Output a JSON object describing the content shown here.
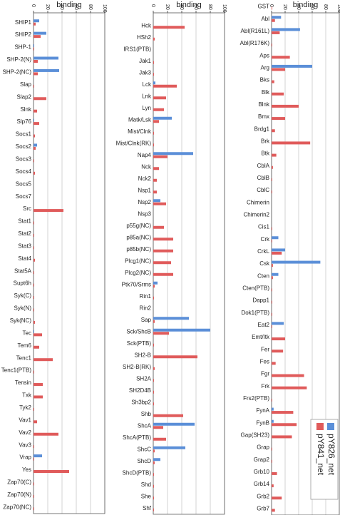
{
  "chart_data": [
    {
      "type": "bar",
      "horizontal": true,
      "title": "binding",
      "xlim": [
        0,
        100
      ],
      "xticks": [
        0,
        20,
        40,
        60,
        80,
        100
      ],
      "grid": true,
      "categories": [
        "SHIP1",
        "SHIP2",
        "SHP-1",
        "SHP-2(N)",
        "SHP-2(NC)",
        "Slap",
        "Slap2",
        "Slnk",
        "Slp76",
        "Socs1",
        "Socs2",
        "Socs3",
        "Socs4",
        "Socs5",
        "Socs7",
        "Src",
        "Stat1",
        "Stat2",
        "Stat3",
        "Stat4",
        "Stat5A",
        "Supt6h",
        "Syk(C)",
        "Syk(N)",
        "Syk(NC)",
        "Tec",
        "Tem6",
        "Tenc1",
        "Tenc1(PTB)",
        "Tensin",
        "Txk",
        "Tyk2",
        "Vav1",
        "Vav2",
        "Vav3",
        "Vrap",
        "Yes",
        "Zap70(C)",
        "Zap70(N)",
        "Zap70(NC)"
      ],
      "series": [
        {
          "name": "pY826_net",
          "color": "#5b8fd8",
          "values": [
            8,
            18,
            1,
            35,
            36,
            0,
            0,
            0,
            1,
            0,
            5,
            0,
            0,
            0,
            0,
            0,
            0,
            0,
            0,
            0,
            0,
            0,
            0,
            0,
            0,
            1,
            0,
            0,
            0,
            0,
            0,
            0,
            0,
            0,
            0,
            12,
            0,
            0,
            0,
            0
          ]
        },
        {
          "name": "pY841_net",
          "color": "#e05b5b",
          "values": [
            3,
            10,
            1,
            6,
            6,
            1,
            18,
            5,
            8,
            2,
            3,
            1,
            2,
            0,
            0,
            42,
            1,
            1,
            1,
            2,
            1,
            1,
            1,
            1,
            2,
            12,
            8,
            27,
            1,
            13,
            13,
            1,
            5,
            35,
            1,
            1,
            50,
            1,
            1,
            1
          ]
        }
      ]
    },
    {
      "type": "bar",
      "horizontal": true,
      "title": "binding",
      "xlim": [
        0,
        100
      ],
      "xticks": [
        0,
        20,
        40,
        60,
        80,
        100
      ],
      "grid": true,
      "categories": [
        "Hck",
        "HSh2",
        "IRS1(PTB)",
        "Jak1",
        "Jak3",
        "Lck",
        "Lnk",
        "Lyn",
        "Matk/Lsk",
        "Mist/Clnk",
        "Mist/Clnk(RK)",
        "Nap4",
        "Nck",
        "Nck2",
        "Nsp1",
        "Nsp2",
        "Nsp3",
        "p55g(NC)",
        "p85a(NC)",
        "p85b(NC)",
        "Plcg1(NC)",
        "Plcg2(NC)",
        "Ptk70/Srms",
        "Rin1",
        "Rin2",
        "Sap",
        "Sck/ShcB",
        "Sck(PTB)",
        "SH2-B",
        "SH2-B(RK)",
        "SH2A",
        "SH2D4B",
        "Sh3bp2",
        "Shb",
        "ShcA",
        "ShcA(PTB)",
        "ShcC",
        "ShcD",
        "ShcD(PTB)",
        "Shd",
        "She",
        "Shf"
      ],
      "series": [
        {
          "name": "pY826_net",
          "color": "#5b8fd8",
          "values": [
            0,
            0,
            0,
            0,
            0,
            3,
            0,
            0,
            26,
            0,
            0,
            56,
            0,
            0,
            0,
            10,
            0,
            0,
            0,
            0,
            0,
            0,
            6,
            0,
            0,
            50,
            80,
            0,
            0,
            0,
            0,
            0,
            0,
            0,
            58,
            0,
            45,
            10,
            0,
            0,
            0,
            0
          ]
        },
        {
          "name": "pY841_net",
          "color": "#e05b5b",
          "values": [
            44,
            2,
            0,
            1,
            1,
            33,
            18,
            15,
            8,
            1,
            1,
            20,
            8,
            5,
            5,
            18,
            0,
            15,
            28,
            28,
            25,
            28,
            2,
            1,
            0,
            2,
            22,
            1,
            62,
            2,
            1,
            1,
            1,
            42,
            14,
            18,
            2,
            2,
            1,
            1,
            1,
            1
          ]
        }
      ]
    },
    {
      "type": "bar",
      "horizontal": true,
      "title": "binding",
      "xlim": [
        0,
        100
      ],
      "xticks": [
        0,
        20,
        40,
        60,
        80,
        100
      ],
      "grid": true,
      "legend": "lower right",
      "categories": [
        "GST",
        "Abl",
        "Abl(R161L)",
        "Abl(R176K)",
        "Aps",
        "Arg",
        "Bks",
        "Blk",
        "Blnk",
        "Bmx",
        "Brdg1",
        "Brk",
        "Btk",
        "CblA",
        "CblB",
        "CblC",
        "Chimerin",
        "Chimerin2",
        "Cis1",
        "Crk",
        "CrkL",
        "Csk",
        "Cten",
        "Cten(PTB)",
        "Dapp1",
        "Dok1(PTB)",
        "Eat2",
        "Emt/Itk",
        "Fer",
        "Fes",
        "Fgr",
        "Frk",
        "Frs2(PTB)",
        "FynA",
        "FynB",
        "Gap(SH23)",
        "Grap",
        "Grap2",
        "Grb10",
        "Grb14",
        "Grb2",
        "Grb7"
      ],
      "series": [
        {
          "name": "pY826_net",
          "color": "#5b8fd8",
          "values": [
            0,
            14,
            42,
            0,
            0,
            60,
            0,
            0,
            0,
            0,
            0,
            0,
            0,
            0,
            0,
            0,
            0,
            0,
            0,
            10,
            20,
            72,
            10,
            0,
            0,
            0,
            18,
            0,
            0,
            0,
            0,
            0,
            0,
            3,
            3,
            0,
            0,
            0,
            0,
            0,
            0,
            0
          ]
        },
        {
          "name": "pY841_net",
          "color": "#e05b5b",
          "values": [
            1,
            5,
            12,
            1,
            27,
            20,
            4,
            18,
            40,
            20,
            5,
            57,
            7,
            2,
            1,
            1,
            0,
            0,
            1,
            1,
            15,
            2,
            2,
            1,
            1,
            1,
            1,
            20,
            17,
            6,
            48,
            52,
            1,
            32,
            37,
            30,
            1,
            1,
            8,
            3,
            15,
            5
          ]
        }
      ]
    }
  ]
}
